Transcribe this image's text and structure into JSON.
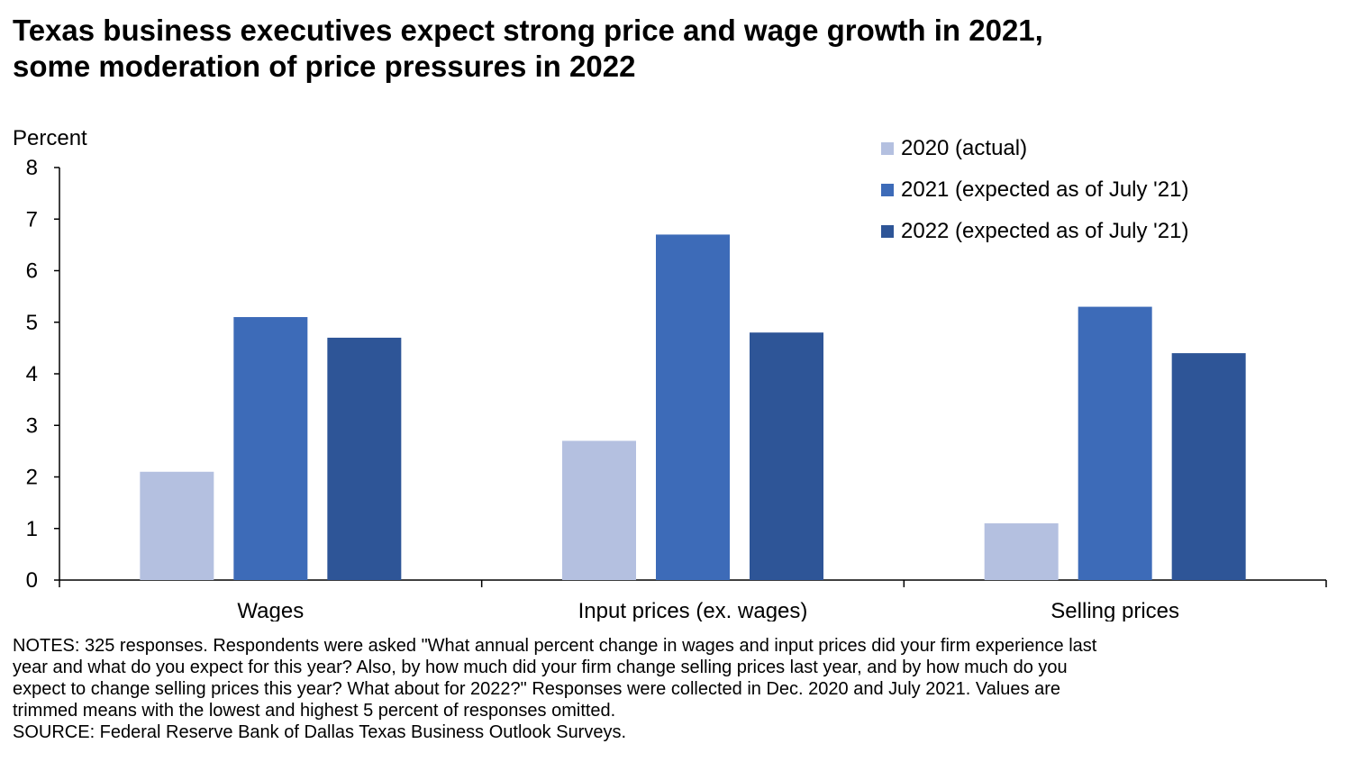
{
  "title_lines": [
    "Texas business executives expect strong price and wage growth in 2021,",
    "some moderation of price pressures in 2022"
  ],
  "notes_lines": [
    "NOTES: 325 responses. Respondents were asked \"What annual percent change in wages and input prices did your firm experience last",
    "year and what do you expect for this year? Also, by how much did your firm change selling prices last year, and by how much do you",
    "expect to change selling prices this year? What about for 2022?\" Responses were collected in Dec. 2020 and July 2021. Values are",
    "trimmed means with the lowest and highest 5 percent of responses omitted."
  ],
  "source": "SOURCE: Federal Reserve Bank of Dallas Texas Business Outlook Surveys.",
  "chart_data": {
    "type": "bar",
    "ylabel": "Percent",
    "ylim": [
      0,
      8
    ],
    "yticks": [
      0,
      1,
      2,
      3,
      4,
      5,
      6,
      7,
      8
    ],
    "grid": false,
    "legend_position": "top-right",
    "categories": [
      "Wages",
      "Input prices (ex. wages)",
      "Selling prices"
    ],
    "series": [
      {
        "name": "2020 (actual)",
        "color": "#b4c0e0",
        "values": [
          2.1,
          2.7,
          1.1
        ]
      },
      {
        "name": "2021 (expected as of July '21)",
        "color": "#3d6bb8",
        "values": [
          5.1,
          6.7,
          5.3
        ]
      },
      {
        "name": "2022 (expected as of July '21)",
        "color": "#2e5597",
        "values": [
          4.7,
          4.8,
          4.4
        ]
      }
    ]
  }
}
